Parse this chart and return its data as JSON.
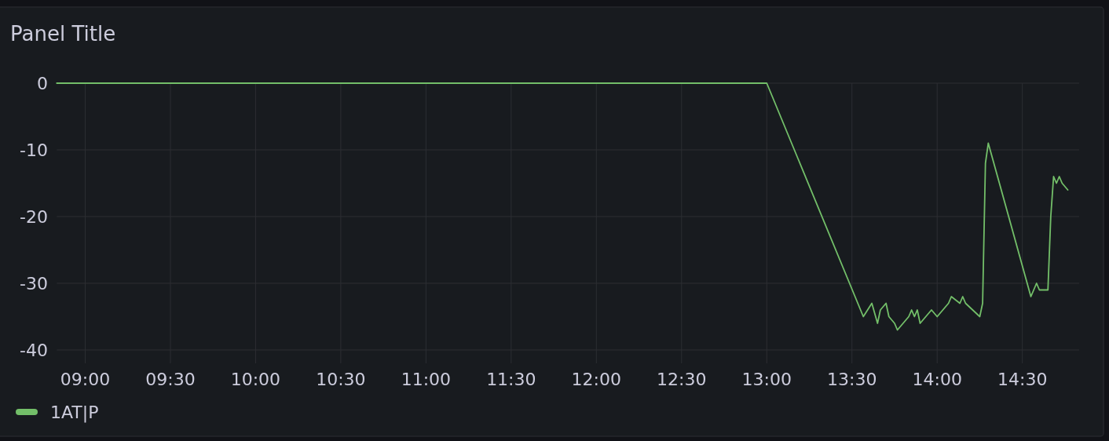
{
  "chart_data": {
    "type": "line",
    "title": "Panel Title",
    "x": [
      8.8333,
      13,
      13.5667,
      13.6167,
      13.65,
      13.6667,
      13.7,
      13.7167,
      13.75,
      13.7667,
      13.8333,
      13.85,
      13.8667,
      13.8833,
      13.9,
      13.9667,
      14,
      14.0667,
      14.0833,
      14.1333,
      14.15,
      14.1667,
      14.25,
      14.2667,
      14.2833,
      14.3,
      14.55,
      14.5833,
      14.6,
      14.65,
      14.6667,
      14.6833,
      14.7,
      14.7167,
      14.7333,
      14.7667
    ],
    "series": [
      {
        "name": "1AT|P",
        "color": "#73bf69",
        "values": [
          0,
          0,
          -35,
          -33,
          -36,
          -34,
          -33,
          -35,
          -36,
          -37,
          -35,
          -34,
          -35,
          -34,
          -36,
          -34,
          -35,
          -33,
          -32,
          -33,
          -32,
          -33,
          -35,
          -33,
          -12,
          -9,
          -32,
          -30,
          -31,
          -31,
          -20,
          -14,
          -15,
          -14,
          -15,
          -16
        ]
      }
    ],
    "xlim": [
      8.8333,
      14.8333
    ],
    "xticks": [
      {
        "value": 9,
        "label": "09:00"
      },
      {
        "value": 9.5,
        "label": "09:30"
      },
      {
        "value": 10,
        "label": "10:00"
      },
      {
        "value": 10.5,
        "label": "10:30"
      },
      {
        "value": 11,
        "label": "11:00"
      },
      {
        "value": 11.5,
        "label": "11:30"
      },
      {
        "value": 12,
        "label": "12:00"
      },
      {
        "value": 12.5,
        "label": "12:30"
      },
      {
        "value": 13,
        "label": "13:00"
      },
      {
        "value": 13.5,
        "label": "13:30"
      },
      {
        "value": 14,
        "label": "14:00"
      },
      {
        "value": 14.5,
        "label": "14:30"
      }
    ],
    "ylim": [
      -42,
      0
    ],
    "yticks": [
      0,
      -10,
      -20,
      -30,
      -40
    ],
    "grid": true,
    "legend": "bottom",
    "line_style": "solid"
  }
}
